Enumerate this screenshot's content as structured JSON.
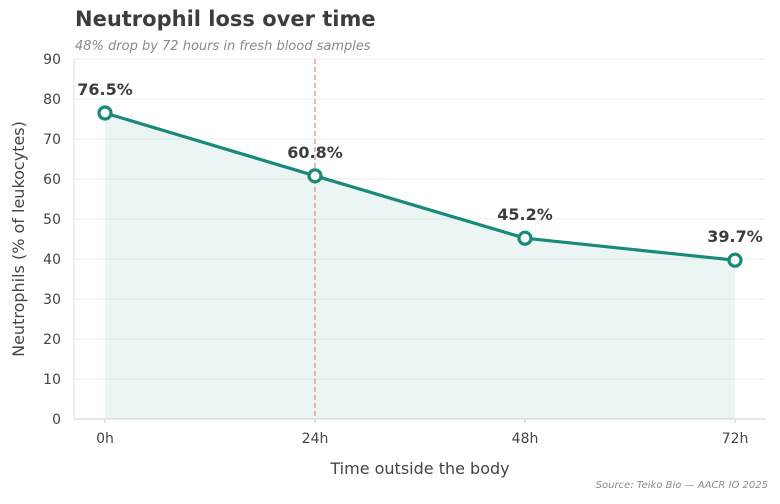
{
  "chart_data": {
    "type": "area",
    "title": "Neutrophil loss over time",
    "subtitle": "48% drop by 72 hours in fresh blood samples",
    "source": "Source: Teiko Bio — AACR IO 2025",
    "xlabel": "Time outside the body",
    "ylabel": "Neutrophils (% of leukocytes)",
    "categories": [
      "0h",
      "24h",
      "48h",
      "72h"
    ],
    "values": [
      76.5,
      60.8,
      45.2,
      39.7
    ],
    "data_labels": [
      "76.5%",
      "60.8%",
      "45.2%",
      "39.7%"
    ],
    "ylim": [
      0,
      90
    ],
    "yticks": [
      "0",
      "10",
      "20",
      "30",
      "40",
      "50",
      "60",
      "70",
      "80",
      "90"
    ],
    "reference_line_at": "24h",
    "grid": true,
    "colors": {
      "line": "#1a8a78",
      "fill": "#1a8a78",
      "reference": "#e08a7c",
      "grid": "#ececec"
    }
  }
}
